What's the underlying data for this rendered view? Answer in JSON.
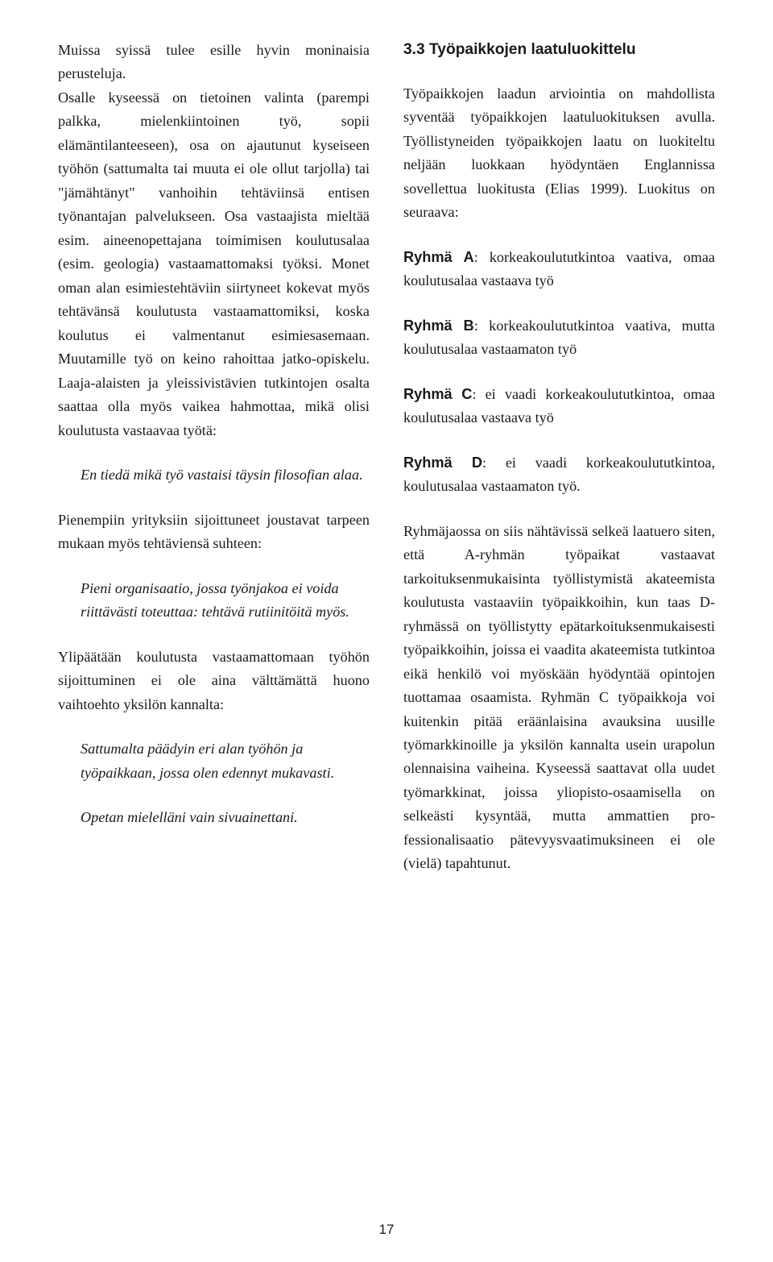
{
  "left": {
    "p1": "Muissa syissä tulee esille hyvin moninaisia perusteluja.",
    "p2": "Osalle kyseessä on tietoinen valinta (parempi palkka, mielenkiintoinen työ, sopii elämäntilanteeseen), osa on ajau­tunut kyseiseen työhön (sattumalta tai muuta ei ole ollut tarjolla) tai \"jämähtänyt\" vanhoihin tehtäviinsä entisen työnantajan palvelukseen. Osa vastaajista mieltää esim. aineenopettajana toimimisen koulutusalaa (esim. geologia) vastaamattomaksi työksi. Monet oman alan esimiestehtäviin siirty­neet kokevat myös tehtävänsä koulutusta vastaamattomiksi, koska koulutus ei val­mentanut esimiesasemaan. Muutamille työ on keino rahoittaa jatko-opiskelu. Laaja-alaisten ja yleissivistävien tutkintojen osalta saattaa olla myös vaikea hahmottaa, mikä olisi koulutusta vastaavaa työtä:",
    "q1": "En tiedä mikä työ vastaisi täysin filosofian alaa.",
    "p3": "Pienempiin yrityksiin sijoittuneet jous­tavat tarpeen mukaan myös tehtäviensä suhteen:",
    "q2": "Pieni organisaatio, jossa työnjakoa ei voida riittävästi toteuttaa: tehtävä rutiinitöitä myös.",
    "p4": "Ylipäätään koulutusta vastaamattomaan työhön sijoittuminen ei ole aina välttämät­tä huono vaihtoehto yksilön kannalta:",
    "q3": "Sattumalta päädyin eri alan työhön ja työpaikkaan, jossa olen edennyt mukavasti.",
    "q4": "Opetan mielelläni vain sivuainettani."
  },
  "right": {
    "heading": "3.3 Työpaikkojen laatuluokittelu",
    "p1": "Työpaikkojen laadun arviointia on mah­dollista syventää työpaikkojen laatuluoki­tuksen avulla. Työllistyneiden työpaikkojen laatu on luokiteltu neljään luokkaan hyö­dyntäen Englannissa sovellettua luokitusta (Elias 1999). Luokitus on seuraava:",
    "gA_label": "Ryhmä A",
    "gA_text": ": korkeakoulututkintoa vaativa, omaa koulutusalaa vastaava työ",
    "gB_label": "Ryhmä B",
    "gB_text": ": korkeakoulututkintoa vaativa, mutta koulutusalaa vastaamaton työ",
    "gC_label": "Ryhmä C",
    "gC_text": ": ei vaadi korkeakoulututkintoa, omaa koulutusalaa vastaava työ",
    "gD_label": "Ryhmä D",
    "gD_text": ": ei vaadi korkeakoulututkintoa, koulutusalaa vastaamaton työ.",
    "p2": "Ryhmäjaossa on siis nähtävissä selkeä laatu­ero siten, että A-ryhmän työpaikat vastaa­vat tarkoituksenmukaisinta työllistymistä akateemista koulutusta vastaaviin työpaik­koihin, kun taas D-ryhmässä on työllistytty epätarkoituksenmukaisesti työpaikkoihin, joissa ei vaadita akateemista tutkintoa eikä henkilö voi myöskään hyödyntää opinto­jen tuottamaa osaamista. Ryhmän C työ­paikkoja voi kuitenkin pitää eräänlaisina avauksina uusille työmarkkinoille ja yksilön kannalta usein urapolun olennaisina vai­heina. Kyseessä saattavat olla uudet työ­markkinat, joissa yliopisto-osaamisella on selkeästi kysyntää, mutta ammattien pro­fessionalisaatio pätevyysvaatimuksineen ei ole (vielä) tapahtunut."
  },
  "pageNumber": "17"
}
